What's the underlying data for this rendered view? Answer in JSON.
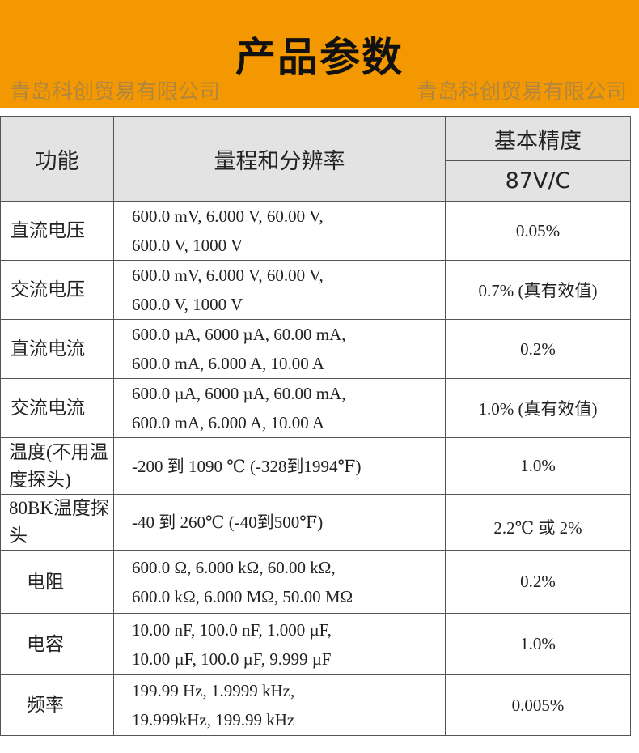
{
  "title": "产品参数",
  "header": {
    "function": "功能",
    "range": "量程和分辨率",
    "accuracy": "基本精度",
    "model": "87V/C"
  },
  "rows": [
    {
      "function": "直流电压",
      "range": [
        "600.0 mV, 6.000 V, 60.00 V,",
        "600.0 V, 1000 V"
      ],
      "accuracy": "0.05%"
    },
    {
      "function": "交流电压",
      "range": [
        "600.0 mV, 6.000 V, 60.00 V,",
        "600.0 V, 1000 V"
      ],
      "accuracy": "0.7% (真有效值)"
    },
    {
      "function": "直流电流",
      "range": [
        "600.0 µA, 6000 µA, 60.00 mA,",
        "600.0 mA, 6.000 A, 10.00 A"
      ],
      "accuracy": "0.2%"
    },
    {
      "function": "交流电流",
      "range": [
        "600.0 µA, 6000 µA, 60.00 mA,",
        "600.0 mA, 6.000 A, 10.00 A"
      ],
      "accuracy": "1.0% (真有效值)"
    },
    {
      "function": "温度(不用温度探头)",
      "range": [
        "-200 到 1090 ℃ (-328到1994℉)"
      ],
      "accuracy": "1.0%"
    },
    {
      "function": "80BK温度探头",
      "range": [
        "-40 到 260℃ (-40到500℉)"
      ],
      "accuracy": "2.2℃ 或 2%"
    },
    {
      "function": "电阻",
      "range": [
        "600.0 Ω, 6.000 kΩ, 60.00 kΩ,",
        "600.0 kΩ, 6.000 MΩ, 50.00 MΩ"
      ],
      "accuracy": "0.2%"
    },
    {
      "function": "电容",
      "range": [
        "10.00 nF, 100.0 nF, 1.000 µF,",
        "10.00 µF, 100.0 µF, 9.999 µF"
      ],
      "accuracy": "1.0%"
    },
    {
      "function": "频率",
      "range": [
        "199.99 Hz, 1.9999 kHz,",
        "19.999kHz, 199.99 kHz"
      ],
      "accuracy": "0.005%"
    }
  ],
  "watermark": "青岛科创贸易有限公司",
  "colors": {
    "banner": "#F39800",
    "header_bg": "#e3e3e3"
  }
}
